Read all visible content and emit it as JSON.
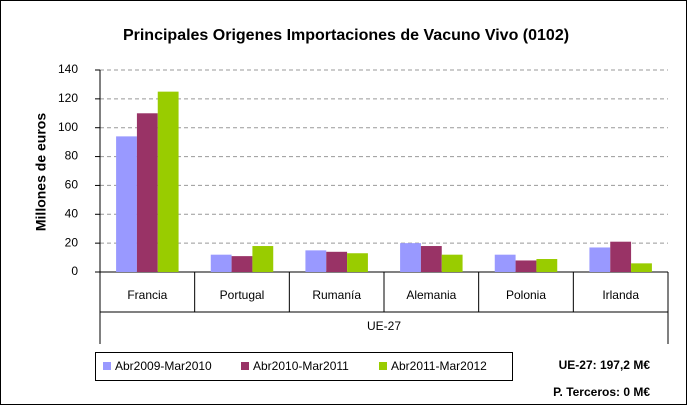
{
  "chart_data": {
    "type": "bar",
    "title": "Principales Origenes Importaciones de Vacuno Vivo (0102)",
    "y_label": "Millones de euros",
    "categories": [
      "Francia",
      "Portugal",
      "Rumanía",
      "Alemania",
      "Polonia",
      "Irlanda"
    ],
    "group_label": "UE-27",
    "series": [
      {
        "name": "Abr2009-Mar2010",
        "color": "#9999ff",
        "values": [
          94,
          12,
          15,
          20,
          12,
          17
        ]
      },
      {
        "name": "Abr2010-Mar2011",
        "color": "#993366",
        "values": [
          110,
          11,
          14,
          18,
          8,
          21
        ]
      },
      {
        "name": "Abr2011-Mar2012",
        "color": "#99cc00",
        "values": [
          125,
          18,
          13,
          12,
          9,
          6
        ]
      }
    ],
    "ylim": [
      0,
      140
    ],
    "yticks": [
      0,
      20,
      40,
      60,
      80,
      100,
      120,
      140
    ],
    "grid": true,
    "annotations": [
      "UE-27: 197,2 M€",
      "P. Terceros: 0 M€"
    ]
  }
}
